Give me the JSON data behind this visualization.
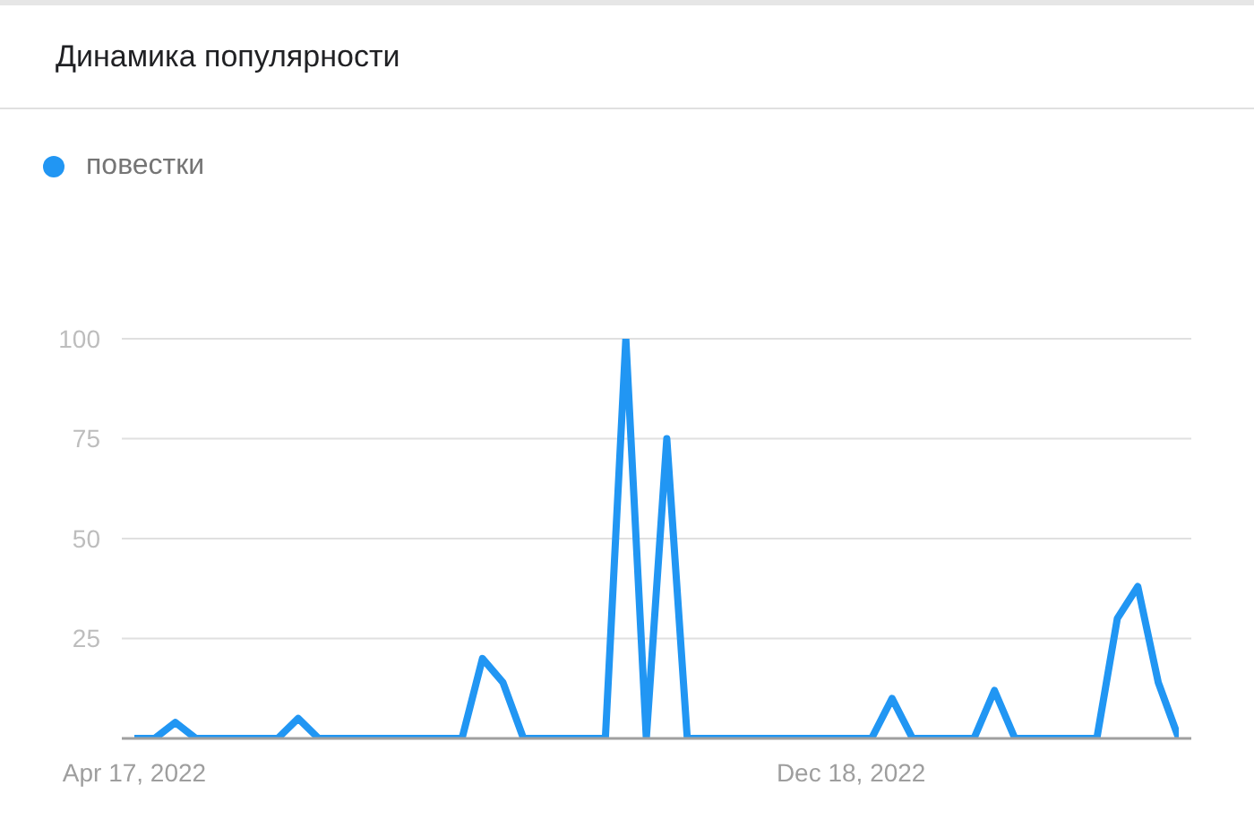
{
  "chart_data": {
    "type": "line",
    "title": "Динамика популярности",
    "categories": [
      "Apr 17, 2022",
      null,
      null,
      null,
      null,
      null,
      null,
      null,
      null,
      null,
      null,
      null,
      null,
      null,
      null,
      null,
      null,
      null,
      null,
      null,
      null,
      null,
      null,
      null,
      null,
      null,
      null,
      null,
      null,
      null,
      null,
      null,
      null,
      null,
      null,
      "Dec 18, 2022",
      null,
      null,
      null,
      null,
      null,
      null,
      null,
      null,
      null,
      null,
      null,
      null,
      null,
      null,
      null,
      null
    ],
    "series": [
      {
        "name": "повестки",
        "color": "#2196f3",
        "values": [
          0,
          0,
          4,
          0,
          0,
          0,
          0,
          0,
          5,
          0,
          0,
          0,
          0,
          0,
          0,
          0,
          0,
          20,
          14,
          0,
          0,
          0,
          0,
          0,
          100,
          0,
          75,
          0,
          0,
          0,
          0,
          0,
          0,
          0,
          0,
          0,
          0,
          10,
          0,
          0,
          0,
          0,
          12,
          0,
          0,
          0,
          0,
          0,
          30,
          38,
          14,
          0
        ]
      }
    ],
    "ylim": [
      0,
      100
    ],
    "yticks": [
      {
        "value": 0,
        "label": null
      },
      25,
      50,
      75,
      100
    ],
    "grid": "y",
    "legend": "top left"
  }
}
